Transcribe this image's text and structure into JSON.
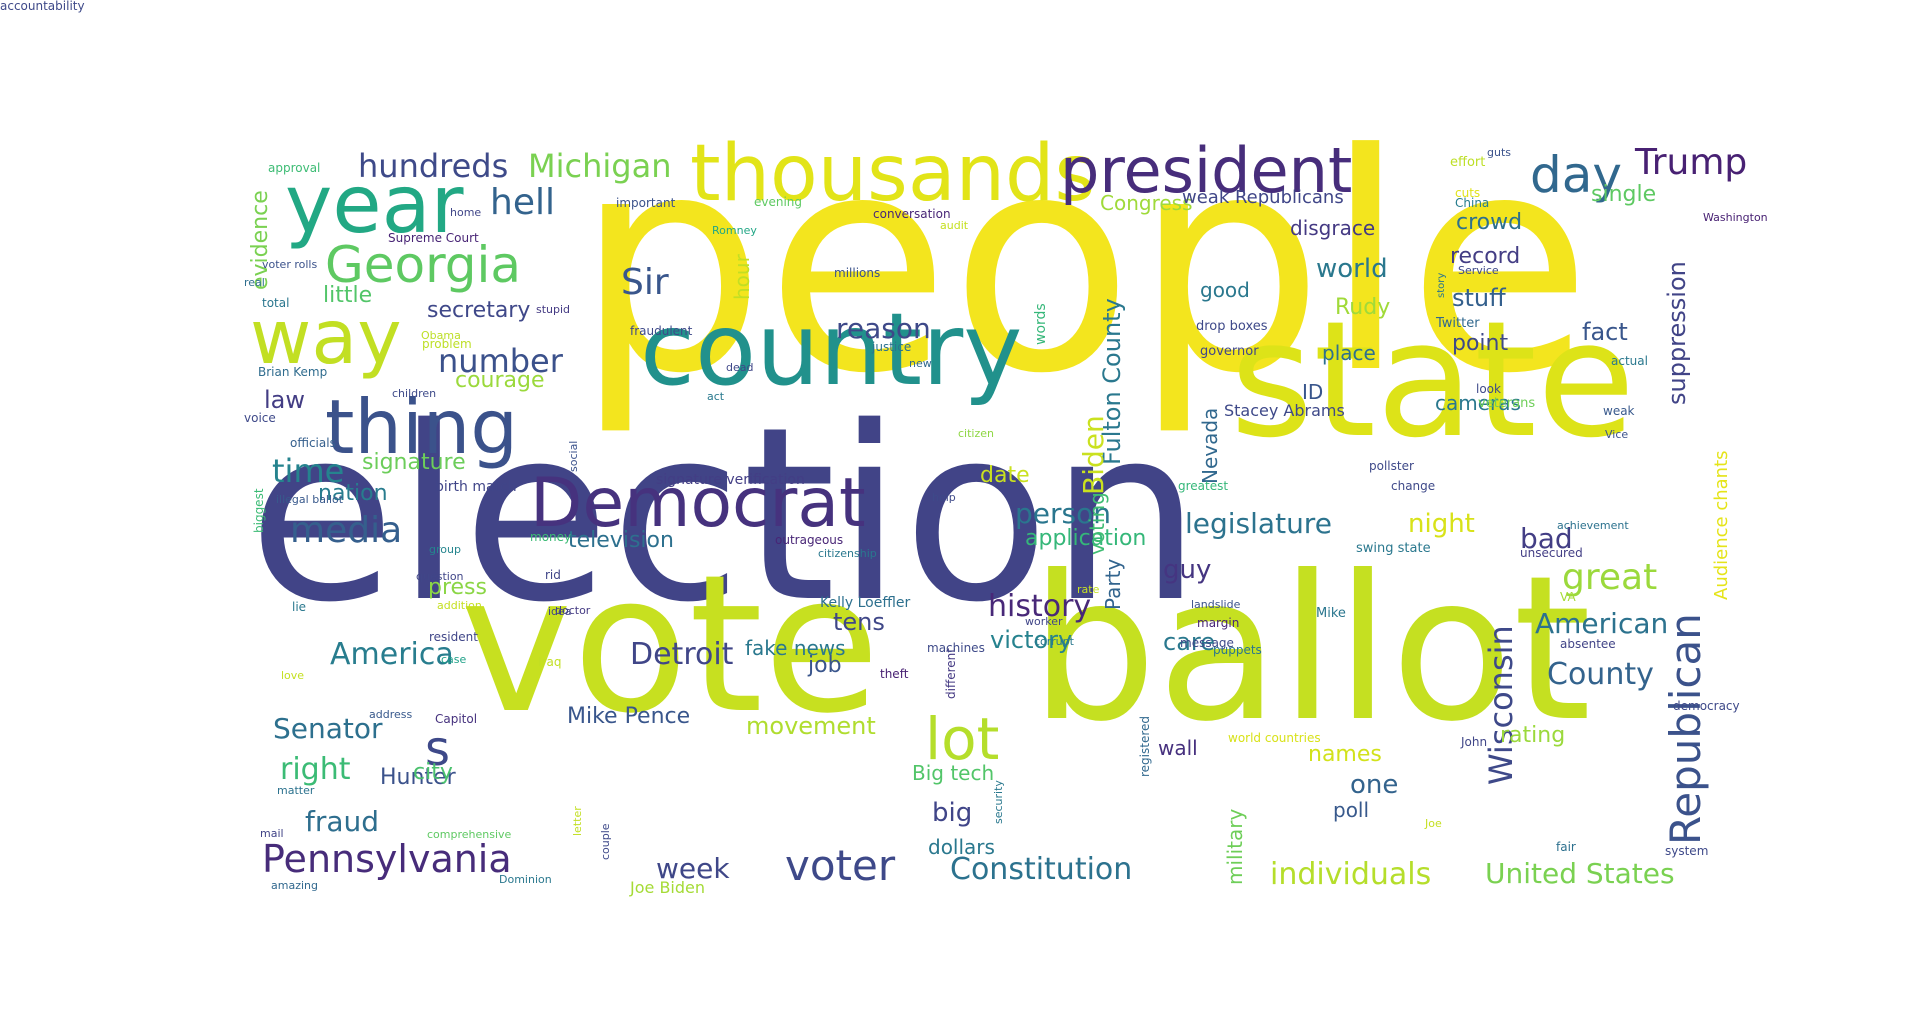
{
  "wordcloud": {
    "words": [
      {
        "text": "people",
        "color": "#f3e51e"
      },
      {
        "text": "election",
        "color": "#414487"
      },
      {
        "text": "vote",
        "color": "#c7e020"
      },
      {
        "text": "ballot",
        "color": "#c5e021"
      },
      {
        "text": "state",
        "color": "#dde318"
      },
      {
        "text": "country",
        "color": "#21918c"
      },
      {
        "text": "Democrat",
        "color": "#46327e"
      },
      {
        "text": "thing",
        "color": "#3b528b"
      },
      {
        "text": "way",
        "color": "#c2df23"
      },
      {
        "text": "year",
        "color": "#22a884"
      },
      {
        "text": "thousands",
        "color": "#e2e418"
      },
      {
        "text": "president",
        "color": "#472d7b"
      },
      {
        "text": "Georgia",
        "color": "#5ec962"
      },
      {
        "text": "lot",
        "color": "#b5de2b"
      },
      {
        "text": "Republican",
        "color": "#3b528b"
      },
      {
        "text": "day",
        "color": "#31688e"
      },
      {
        "text": "Trump",
        "color": "#482173"
      },
      {
        "text": "s",
        "color": "#3e4989"
      },
      {
        "text": "voter",
        "color": "#3e4989"
      },
      {
        "text": "Pennsylvania",
        "color": "#472c7a"
      },
      {
        "text": "media",
        "color": "#355f8d"
      },
      {
        "text": "Michigan",
        "color": "#7ad151"
      },
      {
        "text": "hundreds",
        "color": "#3e4a89"
      },
      {
        "text": "hell",
        "color": "#33638d"
      },
      {
        "text": "number",
        "color": "#3b518b"
      },
      {
        "text": "Sir",
        "color": "#39568c"
      },
      {
        "text": "time",
        "color": "#25838e"
      },
      {
        "text": "history",
        "color": "#482878"
      },
      {
        "text": "great",
        "color": "#9bd93c"
      },
      {
        "text": "Wisconsin",
        "color": "#3e4989"
      },
      {
        "text": "County",
        "color": "#33638d"
      },
      {
        "text": "American",
        "color": "#2c728e"
      },
      {
        "text": "Constitution",
        "color": "#2c728e"
      },
      {
        "text": "individuals",
        "color": "#b5de2b"
      },
      {
        "text": "United States",
        "color": "#7ad151"
      },
      {
        "text": "Detroit",
        "color": "#404688"
      },
      {
        "text": "America",
        "color": "#287d8e"
      },
      {
        "text": "Senator",
        "color": "#2d708e"
      },
      {
        "text": "right",
        "color": "#3bbb75"
      },
      {
        "text": "fraud",
        "color": "#2e6e8e"
      },
      {
        "text": "week",
        "color": "#3f4788"
      },
      {
        "text": "Fulton County",
        "color": "#2a788e"
      },
      {
        "text": "Biden",
        "color": "#cae11f"
      },
      {
        "text": "legislature",
        "color": "#2c738e"
      },
      {
        "text": "bad",
        "color": "#433e85"
      },
      {
        "text": "reason",
        "color": "#3e4989"
      },
      {
        "text": "secretary",
        "color": "#3f4889"
      },
      {
        "text": "courage",
        "color": "#9bd93c"
      },
      {
        "text": "little",
        "color": "#52c569"
      },
      {
        "text": "law",
        "color": "#433d84"
      },
      {
        "text": "signature",
        "color": "#6ccd5a"
      },
      {
        "text": "nation",
        "color": "#287c8e"
      },
      {
        "text": "television",
        "color": "#2d708e"
      },
      {
        "text": "person",
        "color": "#2a768e"
      },
      {
        "text": "application",
        "color": "#35b779"
      },
      {
        "text": "date",
        "color": "#cae11f"
      },
      {
        "text": "night",
        "color": "#d8e219"
      },
      {
        "text": "guy",
        "color": "#453581"
      },
      {
        "text": "care",
        "color": "#2a788e"
      },
      {
        "text": "victory",
        "color": "#26828e"
      },
      {
        "text": "tens",
        "color": "#3f4788"
      },
      {
        "text": "job",
        "color": "#39558c"
      },
      {
        "text": "movement",
        "color": "#b0dd2f"
      },
      {
        "text": "fake news",
        "color": "#2a788e"
      },
      {
        "text": "Mike Pence",
        "color": "#39568c"
      },
      {
        "text": "Hunter",
        "color": "#3b528b"
      },
      {
        "text": "city",
        "color": "#4ac16d"
      },
      {
        "text": "press",
        "color": "#8bd646"
      },
      {
        "text": "big",
        "color": "#404588"
      },
      {
        "text": "Big tech",
        "color": "#52c569"
      },
      {
        "text": "dollars",
        "color": "#2a788e"
      },
      {
        "text": "one",
        "color": "#33638d"
      },
      {
        "text": "poll",
        "color": "#38598c"
      },
      {
        "text": "names",
        "color": "#d2e21b"
      },
      {
        "text": "rating",
        "color": "#9bd93c"
      },
      {
        "text": "wall",
        "color": "#46307e"
      },
      {
        "text": "military",
        "color": "#6ece58"
      },
      {
        "text": "Party",
        "color": "#32648e"
      },
      {
        "text": "voting",
        "color": "#3fbc73"
      },
      {
        "text": "crowd",
        "color": "#2d708e"
      },
      {
        "text": "record",
        "color": "#433d84"
      },
      {
        "text": "stuff",
        "color": "#34608d"
      },
      {
        "text": "world",
        "color": "#2a788e"
      },
      {
        "text": "Rudy",
        "color": "#a0da39"
      },
      {
        "text": "good",
        "color": "#2a788e"
      },
      {
        "text": "disgrace",
        "color": "#443983"
      },
      {
        "text": "Congress",
        "color": "#9fda3a"
      },
      {
        "text": "weak Republicans",
        "color": "#404688"
      },
      {
        "text": "place",
        "color": "#2d708e"
      },
      {
        "text": "point",
        "color": "#3e4989"
      },
      {
        "text": "fact",
        "color": "#39568c"
      },
      {
        "text": "suppression",
        "color": "#414487"
      },
      {
        "text": "cameras",
        "color": "#2a788e"
      },
      {
        "text": "ID",
        "color": "#39568c"
      },
      {
        "text": "Nevada",
        "color": "#31688e"
      },
      {
        "text": "hour",
        "color": "#c2df23"
      },
      {
        "text": "single",
        "color": "#5ec962"
      },
      {
        "text": "evidence",
        "color": "#7ad151"
      },
      {
        "text": "Audience chants",
        "color": "#e5e419"
      },
      {
        "text": "Stacey Abrams",
        "color": "#3e4989"
      },
      {
        "text": "signature verification",
        "color": "#433e85"
      },
      {
        "text": "birth match",
        "color": "#404588"
      },
      {
        "text": "Joe Biden",
        "color": "#a5db36"
      },
      {
        "text": "Kelly Loeffler",
        "color": "#2d708e"
      },
      {
        "text": "Supreme Court",
        "color": "#482475"
      },
      {
        "text": "Brian Kemp",
        "color": "#2f6c8e"
      },
      {
        "text": "approval",
        "color": "#3dbc74"
      },
      {
        "text": "important",
        "color": "#3b528b"
      },
      {
        "text": "evening",
        "color": "#5ec962"
      },
      {
        "text": "conversation",
        "color": "#482677"
      },
      {
        "text": "home",
        "color": "#404688"
      },
      {
        "text": "Romney",
        "color": "#21a685"
      },
      {
        "text": "audit",
        "color": "#c5e021"
      },
      {
        "text": "effort",
        "color": "#bddf26"
      },
      {
        "text": "guts",
        "color": "#3b528b"
      },
      {
        "text": "cuts",
        "color": "#e0e318"
      },
      {
        "text": "China",
        "color": "#287d8e"
      },
      {
        "text": "Washington",
        "color": "#482173"
      },
      {
        "text": "millions",
        "color": "#3b528b"
      },
      {
        "text": "words",
        "color": "#35b779"
      },
      {
        "text": "drop boxes",
        "color": "#3e4989"
      },
      {
        "text": "governor",
        "color": "#404688"
      },
      {
        "text": "story",
        "color": "#2a768e"
      },
      {
        "text": "Service",
        "color": "#3e4989"
      },
      {
        "text": "Twitter",
        "color": "#31688e"
      },
      {
        "text": "voter rolls",
        "color": "#3b528b"
      },
      {
        "text": "real",
        "color": "#2e6e8e"
      },
      {
        "text": "total",
        "color": "#2a768e"
      },
      {
        "text": "stupid",
        "color": "#443a83"
      },
      {
        "text": "Obama",
        "color": "#bddf26"
      },
      {
        "text": "problem",
        "color": "#bddf26"
      },
      {
        "text": "fraudulent",
        "color": "#3e4989"
      },
      {
        "text": "justice",
        "color": "#2c728e"
      },
      {
        "text": "new",
        "color": "#31688e"
      },
      {
        "text": "dead",
        "color": "#3f4788"
      },
      {
        "text": "act",
        "color": "#29798e"
      },
      {
        "text": "citizen",
        "color": "#8fd744"
      },
      {
        "text": "children",
        "color": "#3e4a89"
      },
      {
        "text": "voice",
        "color": "#3e4989"
      },
      {
        "text": "officials",
        "color": "#355f8d"
      },
      {
        "text": "social",
        "color": "#3b528b"
      },
      {
        "text": "biggest",
        "color": "#3bbb75"
      },
      {
        "text": "illegal ballot",
        "color": "#38598c"
      },
      {
        "text": "help",
        "color": "#3e4989"
      },
      {
        "text": "greatest",
        "color": "#35b779"
      },
      {
        "text": "pollster",
        "color": "#3e4989"
      },
      {
        "text": "change",
        "color": "#3e4989"
      },
      {
        "text": "actual",
        "color": "#2a788e"
      },
      {
        "text": "look",
        "color": "#3e4989"
      },
      {
        "text": "veterans",
        "color": "#6ece58"
      },
      {
        "text": "weak",
        "color": "#38598c"
      },
      {
        "text": "Vice",
        "color": "#3b528b"
      },
      {
        "text": "achievement",
        "color": "#2c728e"
      },
      {
        "text": "unsecured",
        "color": "#433e85"
      },
      {
        "text": "swing state",
        "color": "#2a788e"
      },
      {
        "text": "group",
        "color": "#25858e"
      },
      {
        "text": "money",
        "color": "#3bbb75"
      },
      {
        "text": "outrageous",
        "color": "#482576"
      },
      {
        "text": "citizenship",
        "color": "#2a788e"
      },
      {
        "text": "rid",
        "color": "#404588"
      },
      {
        "text": "question",
        "color": "#404688"
      },
      {
        "text": "lie",
        "color": "#2a788e"
      },
      {
        "text": "addition",
        "color": "#c5e021"
      },
      {
        "text": "doctor",
        "color": "#443a83"
      },
      {
        "text": "rate",
        "color": "#c5e021"
      },
      {
        "text": "worker",
        "color": "#404588"
      },
      {
        "text": "landslide",
        "color": "#3b528b"
      },
      {
        "text": "margin",
        "color": "#482576"
      },
      {
        "text": "Mike",
        "color": "#2a768e"
      },
      {
        "text": "VA",
        "color": "#a5db36"
      },
      {
        "text": "absentee",
        "color": "#414487"
      },
      {
        "text": "resident",
        "color": "#404688"
      },
      {
        "text": "case",
        "color": "#1fa188"
      },
      {
        "text": "love",
        "color": "#c5e021"
      },
      {
        "text": "idea",
        "color": "#404588"
      },
      {
        "text": "Iraq",
        "color": "#c2df23"
      },
      {
        "text": "different",
        "color": "#443983"
      },
      {
        "text": "machines",
        "color": "#3e4a89"
      },
      {
        "text": "corrupt",
        "color": "#2a788e"
      },
      {
        "text": "message",
        "color": "#3e4989"
      },
      {
        "text": "theft",
        "color": "#482173"
      },
      {
        "text": "puppets",
        "color": "#2a768e"
      },
      {
        "text": "address",
        "color": "#38598c"
      },
      {
        "text": "Capitol",
        "color": "#46327e"
      },
      {
        "text": "democracy",
        "color": "#3e4989"
      },
      {
        "text": "world countries",
        "color": "#d8e219"
      },
      {
        "text": "John",
        "color": "#404688"
      },
      {
        "text": "registered",
        "color": "#31688e"
      },
      {
        "text": "security",
        "color": "#2a788e"
      },
      {
        "text": "matter",
        "color": "#2c728e"
      },
      {
        "text": "comprehensive",
        "color": "#5ec962"
      },
      {
        "text": "mail",
        "color": "#414487"
      },
      {
        "text": "letter",
        "color": "#c2df23"
      },
      {
        "text": "couple",
        "color": "#3e4989"
      },
      {
        "text": "Joe",
        "color": "#c5e021"
      },
      {
        "text": "fair",
        "color": "#2d708e"
      },
      {
        "text": "system",
        "color": "#3e4989"
      },
      {
        "text": "amazing",
        "color": "#31688e"
      },
      {
        "text": "Dominion",
        "color": "#2a788e"
      },
      {
        "text": "accountability",
        "color": "#3e4989"
      }
    ]
  }
}
